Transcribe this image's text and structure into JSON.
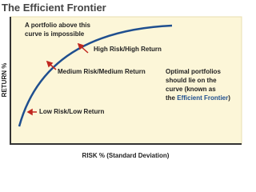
{
  "header": {
    "title": "The Efficient Frontier"
  },
  "axes": {
    "y_label": "RETURN %",
    "x_label": "RISK % (Standard Deviation)"
  },
  "annotations": {
    "impossible": [
      "A portfolio above this",
      "curve is impossible"
    ],
    "high": "High Risk/High Return",
    "medium": "Medium Risk/Medium Return",
    "low": "Low Risk/Low Return",
    "optimal": [
      "Optimal portfolios",
      "should lie on the",
      "curve (known as"
    ],
    "optimal_last": {
      "before": "the ",
      "highlight": "Efficient Frontier",
      "after": ")"
    }
  }
}
